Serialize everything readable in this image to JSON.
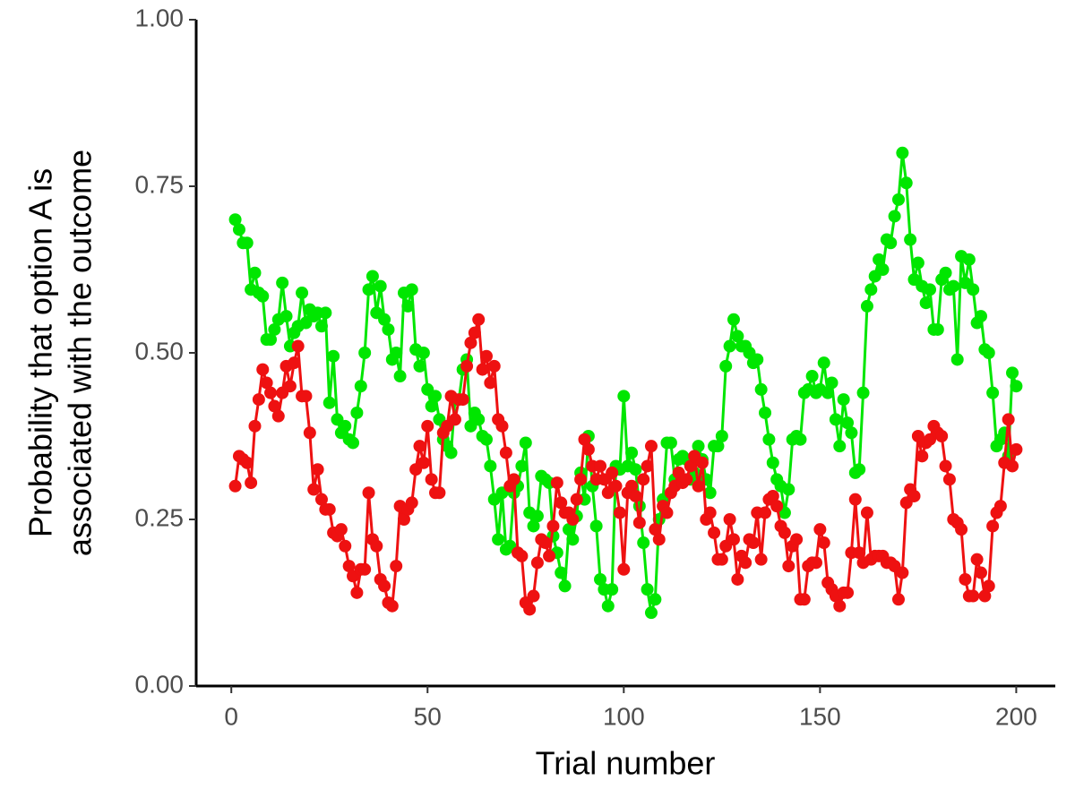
{
  "chart_data": {
    "type": "line",
    "xlabel": "Trial number",
    "ylabel": [
      "Probability that option A is",
      "associated with the outcome"
    ],
    "x": [
      1,
      2,
      3,
      4,
      5,
      6,
      7,
      8,
      9,
      10,
      11,
      12,
      13,
      14,
      15,
      16,
      17,
      18,
      19,
      20,
      21,
      22,
      23,
      24,
      25,
      26,
      27,
      28,
      29,
      30,
      31,
      32,
      33,
      34,
      35,
      36,
      37,
      38,
      39,
      40,
      41,
      42,
      43,
      44,
      45,
      46,
      47,
      48,
      49,
      50,
      51,
      52,
      53,
      54,
      55,
      56,
      57,
      58,
      59,
      60,
      61,
      62,
      63,
      64,
      65,
      66,
      67,
      68,
      69,
      70,
      71,
      72,
      73,
      74,
      75,
      76,
      77,
      78,
      79,
      80,
      81,
      82,
      83,
      84,
      85,
      86,
      87,
      88,
      89,
      90,
      91,
      92,
      93,
      94,
      95,
      96,
      97,
      98,
      99,
      100,
      101,
      102,
      103,
      104,
      105,
      106,
      107,
      108,
      109,
      110,
      111,
      112,
      113,
      114,
      115,
      116,
      117,
      118,
      119,
      120,
      121,
      122,
      123,
      124,
      125,
      126,
      127,
      128,
      129,
      130,
      131,
      132,
      133,
      134,
      135,
      136,
      137,
      138,
      139,
      140,
      141,
      142,
      143,
      144,
      145,
      146,
      147,
      148,
      149,
      150,
      151,
      152,
      153,
      154,
      155,
      156,
      157,
      158,
      159,
      160,
      161,
      162,
      163,
      164,
      165,
      166,
      167,
      168,
      169,
      170,
      171,
      172,
      173,
      174,
      175,
      176,
      177,
      178,
      179,
      180,
      181,
      182,
      183,
      184,
      185,
      186,
      187,
      188,
      189,
      190,
      191,
      192,
      193,
      194,
      195,
      196,
      197,
      198,
      199,
      200
    ],
    "series": [
      {
        "color": "#00e600",
        "values": [
          0.7,
          0.685,
          0.665,
          0.665,
          0.595,
          0.62,
          0.59,
          0.585,
          0.52,
          0.52,
          0.535,
          0.55,
          0.605,
          0.555,
          0.51,
          0.53,
          0.54,
          0.59,
          0.545,
          0.565,
          0.555,
          0.56,
          0.54,
          0.56,
          0.425,
          0.495,
          0.4,
          0.38,
          0.39,
          0.37,
          0.365,
          0.41,
          0.45,
          0.5,
          0.595,
          0.615,
          0.56,
          0.6,
          0.55,
          0.535,
          0.49,
          0.5,
          0.465,
          0.59,
          0.57,
          0.595,
          0.505,
          0.48,
          0.5,
          0.445,
          0.42,
          0.435,
          0.4,
          0.37,
          0.36,
          0.35,
          0.43,
          0.43,
          0.475,
          0.49,
          0.39,
          0.41,
          0.4,
          0.375,
          0.37,
          0.33,
          0.28,
          0.22,
          0.29,
          0.205,
          0.21,
          0.29,
          0.3,
          0.33,
          0.365,
          0.26,
          0.24,
          0.255,
          0.315,
          0.31,
          0.305,
          0.225,
          0.2,
          0.17,
          0.15,
          0.235,
          0.22,
          0.255,
          0.32,
          0.28,
          0.375,
          0.3,
          0.24,
          0.16,
          0.145,
          0.12,
          0.145,
          0.33,
          0.325,
          0.435,
          0.33,
          0.35,
          0.325,
          0.27,
          0.215,
          0.145,
          0.11,
          0.13,
          0.25,
          0.28,
          0.365,
          0.365,
          0.31,
          0.34,
          0.345,
          0.34,
          0.31,
          0.32,
          0.36,
          0.34,
          0.31,
          0.29,
          0.36,
          0.36,
          0.375,
          0.48,
          0.51,
          0.55,
          0.525,
          0.51,
          0.51,
          0.5,
          0.485,
          0.49,
          0.445,
          0.41,
          0.37,
          0.335,
          0.31,
          0.3,
          0.26,
          0.295,
          0.37,
          0.375,
          0.37,
          0.44,
          0.445,
          0.465,
          0.44,
          0.445,
          0.485,
          0.44,
          0.455,
          0.4,
          0.36,
          0.43,
          0.395,
          0.38,
          0.32,
          0.325,
          0.44,
          0.57,
          0.595,
          0.615,
          0.64,
          0.625,
          0.67,
          0.665,
          0.705,
          0.73,
          0.8,
          0.755,
          0.67,
          0.61,
          0.635,
          0.6,
          0.575,
          0.595,
          0.535,
          0.535,
          0.61,
          0.62,
          0.595,
          0.6,
          0.49,
          0.645,
          0.605,
          0.64,
          0.595,
          0.545,
          0.555,
          0.505,
          0.5,
          0.44,
          0.36,
          0.37,
          0.38,
          0.345,
          0.47,
          0.45
        ]
      },
      {
        "color": "#ee1111",
        "values": [
          0.3,
          0.345,
          0.34,
          0.335,
          0.305,
          0.39,
          0.43,
          0.475,
          0.455,
          0.44,
          0.42,
          0.405,
          0.44,
          0.48,
          0.45,
          0.485,
          0.51,
          0.435,
          0.435,
          0.38,
          0.295,
          0.325,
          0.28,
          0.265,
          0.265,
          0.23,
          0.225,
          0.235,
          0.21,
          0.18,
          0.165,
          0.14,
          0.175,
          0.175,
          0.29,
          0.22,
          0.21,
          0.16,
          0.15,
          0.125,
          0.12,
          0.18,
          0.27,
          0.25,
          0.265,
          0.275,
          0.325,
          0.36,
          0.335,
          0.39,
          0.31,
          0.29,
          0.29,
          0.38,
          0.39,
          0.435,
          0.4,
          0.43,
          0.43,
          0.48,
          0.515,
          0.53,
          0.55,
          0.475,
          0.495,
          0.455,
          0.48,
          0.4,
          0.39,
          0.35,
          0.3,
          0.31,
          0.2,
          0.195,
          0.125,
          0.115,
          0.135,
          0.185,
          0.22,
          0.215,
          0.195,
          0.24,
          0.305,
          0.275,
          0.26,
          0.26,
          0.25,
          0.28,
          0.31,
          0.37,
          0.355,
          0.33,
          0.31,
          0.33,
          0.31,
          0.29,
          0.32,
          0.3,
          0.26,
          0.175,
          0.29,
          0.3,
          0.285,
          0.245,
          0.31,
          0.33,
          0.36,
          0.235,
          0.22,
          0.27,
          0.26,
          0.29,
          0.3,
          0.32,
          0.305,
          0.31,
          0.33,
          0.345,
          0.3,
          0.335,
          0.25,
          0.26,
          0.23,
          0.19,
          0.19,
          0.21,
          0.25,
          0.22,
          0.16,
          0.195,
          0.185,
          0.22,
          0.215,
          0.26,
          0.19,
          0.26,
          0.28,
          0.285,
          0.27,
          0.24,
          0.23,
          0.18,
          0.21,
          0.22,
          0.13,
          0.13,
          0.18,
          0.185,
          0.185,
          0.235,
          0.215,
          0.155,
          0.145,
          0.135,
          0.12,
          0.14,
          0.14,
          0.2,
          0.28,
          0.2,
          0.185,
          0.26,
          0.19,
          0.195,
          0.195,
          0.195,
          0.185,
          0.185,
          0.18,
          0.13,
          0.17,
          0.275,
          0.295,
          0.285,
          0.375,
          0.345,
          0.365,
          0.37,
          0.39,
          0.38,
          0.375,
          0.33,
          0.31,
          0.25,
          0.245,
          0.235,
          0.16,
          0.135,
          0.135,
          0.19,
          0.17,
          0.135,
          0.15,
          0.24,
          0.26,
          0.27,
          0.335,
          0.4,
          0.33,
          0.355
        ]
      }
    ],
    "xlim": [
      -8.95,
      209.95
    ],
    "xticks": [
      0,
      50,
      100,
      150,
      200
    ],
    "ylim": [
      0,
      1
    ],
    "yticks": [
      {
        "value": 0,
        "label": "0.00"
      },
      {
        "value": 0.25,
        "label": "0.25"
      },
      {
        "value": 0.5,
        "label": "0.50"
      },
      {
        "value": 0.75,
        "label": "0.75"
      },
      {
        "value": 1,
        "label": "1.00"
      }
    ],
    "grid": false
  }
}
